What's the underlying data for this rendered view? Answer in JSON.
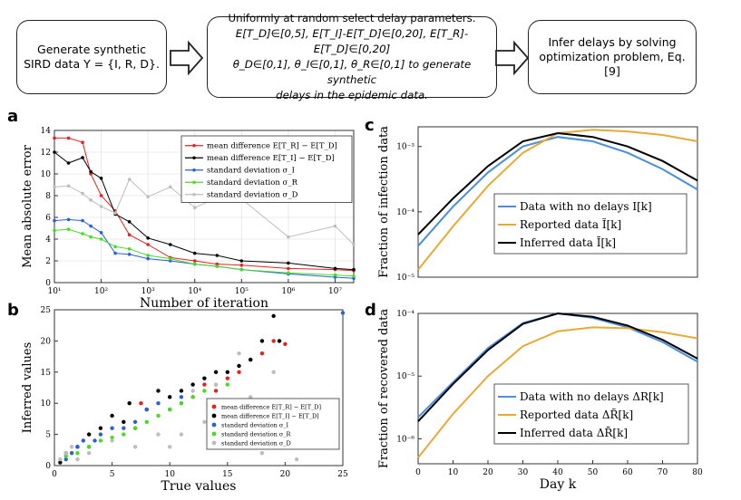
{
  "flow": {
    "box1": {
      "line1": "Generate synthetic",
      "line2": "SIRD data Y = {I, R, D}."
    },
    "box2": {
      "line1": "Uniformly at random select delay parameters.",
      "line2": "E[T_D]∈[0,5], E[T_I]-E[T_D]∈[0,20], E[T_R]-E[T_D]∈[0,20]",
      "line3": "θ_D∈[0,1], θ_I∈[0,1], θ_R∈[0,1] to generate synthetic",
      "line4": "delays in the epidemic data."
    },
    "box3": {
      "line1": "Infer delays  by solving",
      "line2": "optimization problem, Eq.[9]"
    }
  },
  "panel_labels": {
    "a": "a",
    "b": "b",
    "c": "c",
    "d": "d"
  },
  "colors": {
    "red": "#e8201e",
    "black": "#000000",
    "blue": "#2a5fd8",
    "green": "#44dd22",
    "gray": "#bdbdbd",
    "c_blue": "#4a8fd8",
    "c_orange": "#e8a935"
  },
  "chart_data": [
    {
      "id": "a",
      "type": "line",
      "xlabel": "Number of iteration",
      "ylabel": "Mean absolute error",
      "xscale": "log",
      "xlim": [
        10,
        25000000
      ],
      "ylim": [
        0,
        14
      ],
      "xticks": [
        "10¹",
        "10²",
        "10³",
        "10⁴",
        "10⁵",
        "10⁶",
        "10⁷"
      ],
      "yticks": [
        "0",
        "2",
        "4",
        "6",
        "8",
        "10",
        "12",
        "14"
      ],
      "legend": [
        "mean difference E[T_R] − E[T_D]",
        "mean difference E[T_I] − E[T_D]",
        "standard deviation σ_I",
        "standard deviation σ_R",
        "standard deviation σ_D"
      ],
      "series": [
        {
          "name": "mean difference E[T_R] − E[T_D]",
          "color": "red",
          "x": [
            10,
            20,
            40,
            60,
            100,
            200,
            400,
            1000,
            3000,
            10000,
            30000,
            100000,
            1000000,
            10000000,
            25000000
          ],
          "y": [
            13.3,
            13.3,
            12.9,
            10.0,
            8.0,
            6.6,
            4.4,
            3.5,
            2.3,
            2.0,
            1.7,
            1.6,
            1.3,
            1.2,
            1.1
          ]
        },
        {
          "name": "mean difference E[T_I] − E[T_D]",
          "color": "black",
          "x": [
            10,
            20,
            40,
            60,
            100,
            200,
            400,
            1000,
            3000,
            10000,
            30000,
            100000,
            1000000,
            10000000,
            25000000
          ],
          "y": [
            12.0,
            11.0,
            11.5,
            10.2,
            9.6,
            6.3,
            5.6,
            4.1,
            3.5,
            2.7,
            2.5,
            2.0,
            1.8,
            1.3,
            1.2
          ]
        },
        {
          "name": "standard deviation σ_I",
          "color": "blue",
          "x": [
            10,
            20,
            40,
            60,
            100,
            200,
            400,
            1000,
            3000,
            10000,
            30000,
            100000,
            1000000,
            10000000,
            25000000
          ],
          "y": [
            5.7,
            5.8,
            5.7,
            5.2,
            4.6,
            2.7,
            2.6,
            2.2,
            2.0,
            1.7,
            1.5,
            1.2,
            0.8,
            0.5,
            0.4
          ]
        },
        {
          "name": "standard deviation σ_R",
          "color": "green",
          "x": [
            10,
            20,
            40,
            60,
            100,
            200,
            400,
            1000,
            3000,
            10000,
            30000,
            100000,
            1000000,
            10000000,
            25000000
          ],
          "y": [
            4.8,
            4.9,
            4.5,
            4.2,
            4.0,
            3.3,
            3.1,
            2.5,
            2.2,
            1.7,
            1.5,
            1.2,
            0.9,
            0.7,
            0.6
          ]
        },
        {
          "name": "standard deviation σ_D",
          "color": "gray",
          "x": [
            10,
            20,
            40,
            60,
            100,
            200,
            400,
            1000,
            3000,
            10000,
            30000,
            100000,
            1000000,
            10000000,
            25000000
          ],
          "y": [
            8.8,
            8.9,
            8.2,
            7.6,
            7.0,
            6.4,
            9.5,
            7.9,
            8.8,
            6.9,
            7.8,
            7.7,
            4.2,
            5.2,
            3.5
          ]
        }
      ]
    },
    {
      "id": "b",
      "type": "scatter",
      "xlabel": "True values",
      "ylabel": "Inferred values",
      "xlim": [
        0,
        25
      ],
      "ylim": [
        0,
        25
      ],
      "xticks": [
        "0",
        "5",
        "10",
        "15",
        "20",
        "25"
      ],
      "yticks": [
        "0",
        "5",
        "10",
        "15",
        "20",
        "25"
      ],
      "legend": [
        "mean difference E[T_R] − E[T_D]",
        "mean difference E[T_I] − E[T_D]",
        "standard deviation σ_I",
        "standard deviation σ_R",
        "standard deviation σ_D"
      ],
      "series": [
        {
          "name": "mean difference E[T_R] − E[T_D]",
          "color": "red",
          "x": [
            7,
            7.5,
            10,
            11,
            12,
            13,
            14,
            15,
            16,
            17,
            18,
            19,
            20
          ],
          "y": [
            6,
            10,
            9,
            10,
            11,
            13,
            12,
            14,
            15,
            17,
            18,
            20,
            19.5
          ]
        },
        {
          "name": "mean difference E[T_I] − E[T_D]",
          "color": "black",
          "x": [
            0.5,
            1,
            2,
            3,
            4,
            5,
            6,
            6.5,
            8,
            9,
            10,
            11,
            12,
            13,
            14,
            15,
            16,
            17,
            18,
            19,
            19.5
          ],
          "y": [
            0.5,
            2,
            3,
            5,
            6,
            8,
            7,
            10,
            9,
            12,
            11,
            12,
            13,
            14,
            15,
            15,
            16,
            17,
            20,
            24,
            20
          ]
        },
        {
          "name": "standard deviation σ_I",
          "color": "blue",
          "x": [
            1,
            1.5,
            2,
            2.5,
            3,
            3.5,
            4,
            5,
            6,
            7,
            8,
            9,
            11,
            25
          ],
          "y": [
            1,
            2,
            3,
            4,
            3,
            4,
            5,
            6,
            6,
            7,
            9,
            10,
            11,
            24.5
          ]
        },
        {
          "name": "standard deviation σ_R",
          "color": "green",
          "x": [
            1,
            2,
            3,
            4,
            5,
            6,
            7,
            8,
            9,
            10,
            11,
            12,
            13,
            14,
            15
          ],
          "y": [
            1.5,
            2,
            3,
            4,
            4.5,
            5,
            6,
            7,
            8,
            9,
            10,
            11,
            12,
            13,
            13
          ]
        },
        {
          "name": "standard deviation σ_D",
          "color": "gray",
          "x": [
            0.5,
            1,
            1.5,
            2,
            3,
            5,
            7,
            9,
            10,
            11,
            12,
            13,
            14,
            15,
            16,
            17,
            18,
            19,
            20,
            21
          ],
          "y": [
            1,
            2,
            3,
            1,
            2,
            4,
            3,
            5,
            3,
            5,
            12,
            7,
            13,
            10,
            18,
            11,
            2,
            15,
            3,
            1
          ]
        }
      ]
    },
    {
      "id": "c",
      "type": "line",
      "xlabel": "",
      "ylabel": "Fraction of infection data",
      "yscale": "log",
      "xlim": [
        0,
        80
      ],
      "ylim": [
        1e-05,
        0.002
      ],
      "yticks": [
        "10⁻⁵",
        "10⁻⁴",
        "10⁻³"
      ],
      "legend": [
        "Data with no delays I[k]",
        "Reported data Ĩ[k]",
        "Inferred data Ī[k]"
      ],
      "series": [
        {
          "name": "Data with no delays I[k]",
          "color": "c_blue",
          "x": [
            0,
            10,
            20,
            30,
            40,
            50,
            60,
            70,
            80
          ],
          "y": [
            3e-05,
            0.00012,
            0.0004,
            0.001,
            0.0014,
            0.0012,
            0.0008,
            0.00045,
            0.00022
          ]
        },
        {
          "name": "Reported data Ĩ[k]",
          "color": "c_orange",
          "x": [
            0,
            10,
            20,
            30,
            40,
            50,
            60,
            70,
            80
          ],
          "y": [
            1.3e-05,
            6e-05,
            0.00025,
            0.0008,
            0.0016,
            0.0018,
            0.0017,
            0.0015,
            0.0012
          ]
        },
        {
          "name": "Inferred data Ī[k]",
          "color": "black",
          "x": [
            0,
            10,
            20,
            30,
            40,
            50,
            60,
            70,
            80
          ],
          "y": [
            4.5e-05,
            0.00016,
            0.0005,
            0.0012,
            0.0016,
            0.0014,
            0.001,
            0.0006,
            0.0003
          ]
        }
      ]
    },
    {
      "id": "d",
      "type": "line",
      "xlabel": "Day k",
      "ylabel": "Fraction of recovered data",
      "yscale": "log",
      "xlim": [
        0,
        80
      ],
      "ylim": [
        4e-07,
        0.0001
      ],
      "xticks": [
        "0",
        "10",
        "20",
        "30",
        "40",
        "50",
        "60",
        "70",
        "80"
      ],
      "yticks": [
        "10⁻⁶",
        "10⁻⁵",
        "10⁻⁴"
      ],
      "legend": [
        "Data with no delays ΔR[k]",
        "Reported data ΔR̃[k]",
        "Inferred data ΔR̄[k]"
      ],
      "series": [
        {
          "name": "Data with no delays ΔR[k]",
          "color": "c_blue",
          "x": [
            0,
            10,
            20,
            30,
            40,
            50,
            60,
            70,
            80
          ],
          "y": [
            2.2e-06,
            8e-06,
            2.8e-05,
            7e-05,
            0.0001,
            8.5e-05,
            6e-05,
            3.5e-05,
            1.7e-05
          ]
        },
        {
          "name": "Reported data ΔR̃[k]",
          "color": "c_orange",
          "x": [
            0,
            10,
            20,
            30,
            40,
            50,
            60,
            70,
            80
          ],
          "y": [
            5e-07,
            2.5e-06,
            1e-05,
            3e-05,
            5.2e-05,
            6e-05,
            5.8e-05,
            5e-05,
            4e-05
          ]
        },
        {
          "name": "Inferred data ΔR̄[k]",
          "color": "black",
          "x": [
            0,
            10,
            20,
            30,
            40,
            50,
            60,
            70,
            80
          ],
          "y": [
            1.9e-06,
            7.5e-06,
            2.6e-05,
            6.8e-05,
            0.0001,
            8.8e-05,
            6.4e-05,
            3.8e-05,
            1.9e-05
          ]
        }
      ]
    }
  ]
}
